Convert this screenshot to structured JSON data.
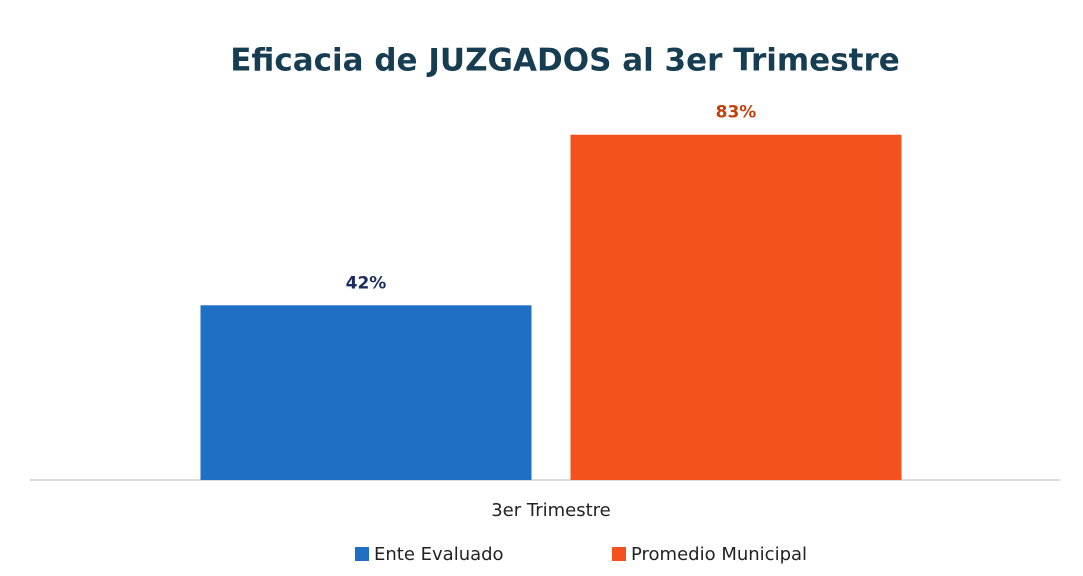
{
  "chart_data": {
    "type": "bar",
    "title": "Eficacia de JUZGADOS al 3er Trimestre",
    "categories": [
      "3er Trimestre"
    ],
    "series": [
      {
        "name": "Ente Evaluado",
        "color": "#1f6fc5",
        "label_color": "#1a2b5c",
        "values": [
          42
        ],
        "value_labels": [
          "42%"
        ]
      },
      {
        "name": "Promedio Municipal",
        "color": "#f4511e",
        "label_color": "#c2410c",
        "values": [
          83
        ],
        "value_labels": [
          "83%"
        ]
      }
    ],
    "ylim": [
      0,
      100
    ],
    "grid": false
  }
}
